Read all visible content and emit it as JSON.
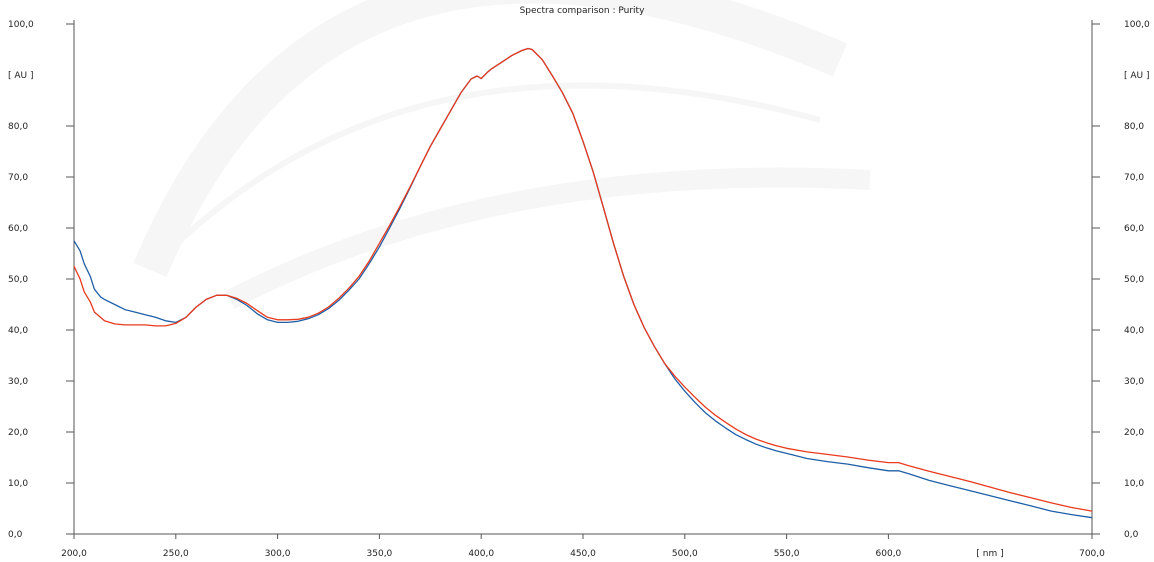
{
  "chart_data": {
    "type": "line",
    "title": "Spectra comparison : Purity",
    "xlabel": "[ nm ]",
    "ylabel": "[ AU ]",
    "xlim": [
      200,
      700
    ],
    "ylim": [
      0,
      100
    ],
    "x_ticks": [
      "200,0",
      "250,0",
      "300,0",
      "350,0",
      "400,0",
      "450,0",
      "500,0",
      "550,0",
      "600,0",
      "700,0"
    ],
    "x_tick_values": [
      200,
      250,
      300,
      350,
      400,
      450,
      500,
      550,
      600,
      700
    ],
    "y_ticks": [
      "0,0",
      "10,0",
      "20,0",
      "30,0",
      "40,0",
      "50,0",
      "60,0",
      "70,0",
      "80,0",
      "100,0"
    ],
    "y_tick_values": [
      0,
      10,
      20,
      30,
      40,
      50,
      60,
      70,
      80,
      100
    ],
    "grid": false,
    "series": [
      {
        "color": "#1f5fa8",
        "x": [
          200,
          203,
          205,
          208,
          210,
          213,
          215,
          220,
          225,
          230,
          235,
          240,
          245,
          250,
          255,
          260,
          265,
          270,
          275,
          280,
          285,
          290,
          295,
          300,
          305,
          310,
          315,
          320,
          325,
          330,
          335,
          340,
          345,
          350,
          355,
          360,
          365,
          370,
          375,
          380,
          385,
          390,
          395,
          398,
          400,
          403,
          405,
          410,
          415,
          420,
          423,
          425,
          430,
          435,
          440,
          445,
          450,
          455,
          460,
          465,
          470,
          475,
          480,
          485,
          490,
          495,
          500,
          505,
          510,
          515,
          520,
          525,
          530,
          535,
          540,
          545,
          550,
          560,
          570,
          580,
          590,
          600,
          605,
          610,
          620,
          630,
          640,
          650,
          660,
          670,
          680,
          690,
          700
        ],
        "values": [
          57.5,
          55.5,
          53,
          50.5,
          48,
          46.5,
          46,
          45,
          44,
          43.5,
          43,
          42.5,
          41.8,
          41.5,
          42.5,
          44.5,
          46,
          46.8,
          46.8,
          46,
          44.8,
          43.2,
          42,
          41.5,
          41.5,
          41.7,
          42.2,
          43,
          44.2,
          45.8,
          47.8,
          50,
          53,
          56.3,
          60,
          63.8,
          67.8,
          72,
          76,
          79.5,
          83,
          86.5,
          89.2,
          89.8,
          89.3,
          90.5,
          91.2,
          92.5,
          93.8,
          94.8,
          95.2,
          95,
          93,
          89.8,
          86.5,
          82.5,
          77,
          71,
          64,
          57,
          50.5,
          45,
          40.5,
          36.8,
          33.5,
          30.5,
          28,
          25.8,
          23.8,
          22.2,
          20.8,
          19.5,
          18.5,
          17.6,
          16.9,
          16.3,
          15.8,
          14.8,
          14.2,
          13.7,
          13,
          12.4,
          12.4,
          11.8,
          10.5,
          9.5,
          8.5,
          7.5,
          6.5,
          5.5,
          4.5,
          3.8,
          3.2
        ]
      },
      {
        "color": "#e83a1c",
        "x": [
          200,
          203,
          205,
          208,
          210,
          213,
          215,
          220,
          225,
          230,
          235,
          240,
          245,
          250,
          255,
          260,
          265,
          270,
          275,
          280,
          285,
          290,
          295,
          300,
          305,
          310,
          315,
          320,
          325,
          330,
          335,
          340,
          345,
          350,
          355,
          360,
          365,
          370,
          375,
          380,
          385,
          390,
          395,
          398,
          400,
          403,
          405,
          410,
          415,
          420,
          423,
          425,
          430,
          435,
          440,
          445,
          450,
          455,
          460,
          465,
          470,
          475,
          480,
          485,
          490,
          495,
          500,
          505,
          510,
          515,
          520,
          525,
          530,
          535,
          540,
          545,
          550,
          560,
          570,
          580,
          590,
          600,
          605,
          610,
          620,
          630,
          640,
          650,
          660,
          670,
          680,
          690,
          700
        ],
        "values": [
          52.5,
          50,
          47.5,
          45.5,
          43.5,
          42.5,
          41.8,
          41.2,
          41,
          41,
          41,
          40.8,
          40.8,
          41.3,
          42.5,
          44.5,
          46,
          46.8,
          46.8,
          46.2,
          45.2,
          43.8,
          42.5,
          42,
          42,
          42.1,
          42.5,
          43.3,
          44.5,
          46.2,
          48.2,
          50.5,
          53.5,
          57,
          60.5,
          64.2,
          68,
          72,
          76,
          79.5,
          83,
          86.5,
          89.2,
          89.8,
          89.3,
          90.5,
          91.2,
          92.5,
          93.8,
          94.8,
          95.2,
          95,
          93,
          89.8,
          86.5,
          82.5,
          77,
          71,
          64,
          57,
          50.5,
          45,
          40.5,
          36.8,
          33.5,
          31,
          28.8,
          26.8,
          24.9,
          23.3,
          21.9,
          20.6,
          19.5,
          18.6,
          17.9,
          17.3,
          16.8,
          16.1,
          15.6,
          15.1,
          14.5,
          14,
          14,
          13.4,
          12.3,
          11.3,
          10.3,
          9.2,
          8.1,
          7.1,
          6.1,
          5.2,
          4.5
        ]
      }
    ]
  }
}
